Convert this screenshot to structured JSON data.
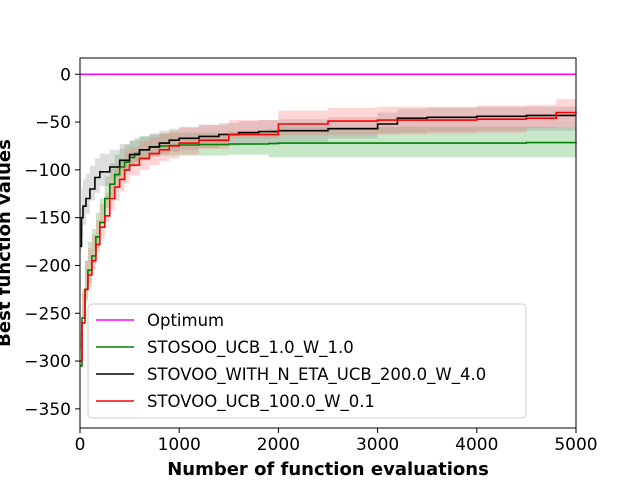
{
  "chart_data": {
    "type": "line",
    "title": "",
    "xlabel": "Number of function evaluations",
    "ylabel": "Best function values",
    "xlim": [
      0,
      5000
    ],
    "ylim": [
      -370,
      17
    ],
    "xticks": [
      0,
      1000,
      2000,
      3000,
      4000,
      5000
    ],
    "yticks": [
      0,
      -50,
      -100,
      -150,
      -200,
      -250,
      -300,
      -350
    ],
    "grid": false,
    "legend_position": "lower-left",
    "series": [
      {
        "name": "Optimum",
        "color": "#ff00ff",
        "x": [
          0,
          5000
        ],
        "y": [
          0,
          0
        ]
      },
      {
        "name": "STOSOO_UCB_1.0_W_1.0",
        "color": "#008000",
        "band_color": "#3aa83a",
        "x": [
          0,
          20,
          50,
          80,
          120,
          160,
          200,
          250,
          300,
          350,
          400,
          450,
          500,
          550,
          600,
          700,
          800,
          900,
          1000,
          1200,
          1500,
          1900,
          2000,
          2500,
          3000,
          3500,
          4000,
          4500,
          5000
        ],
        "y": [
          -305,
          -255,
          -225,
          -205,
          -190,
          -170,
          -155,
          -130,
          -115,
          -105,
          -97,
          -92,
          -87,
          -83,
          -79,
          -76,
          -75,
          -74.5,
          -74,
          -73.5,
          -73,
          -72.5,
          -72,
          -72,
          -72,
          -72,
          -72,
          -71.5,
          -71
        ],
        "lower": [
          -330,
          -285,
          -255,
          -235,
          -218,
          -198,
          -182,
          -157,
          -140,
          -128,
          -118,
          -110,
          -102,
          -97,
          -92,
          -88,
          -86,
          -85,
          -85,
          -85,
          -85,
          -84,
          -87,
          -87,
          -87,
          -87,
          -87,
          -87,
          -87
        ],
        "upper": [
          -280,
          -225,
          -195,
          -175,
          -162,
          -145,
          -130,
          -107,
          -93,
          -84,
          -78,
          -74,
          -70,
          -67,
          -65,
          -63,
          -62,
          -61,
          -61,
          -61,
          -60,
          -58,
          -55,
          -55,
          -55,
          -55,
          -55,
          -55,
          -55
        ]
      },
      {
        "name": "STOVOO_WITH_N_ETA_UCB_200.0_W_4.0",
        "color": "#000000",
        "band_color": "#8a8a8a",
        "x": [
          0,
          15,
          30,
          60,
          100,
          150,
          200,
          300,
          400,
          500,
          600,
          700,
          800,
          900,
          1000,
          1200,
          1400,
          1600,
          1800,
          2000,
          2500,
          3000,
          3200,
          3500,
          4000,
          4500,
          5000
        ],
        "y": [
          -180,
          -150,
          -138,
          -130,
          -120,
          -108,
          -102,
          -97,
          -90,
          -84,
          -79,
          -76,
          -72,
          -69,
          -67,
          -65,
          -63,
          -61,
          -60,
          -59,
          -57,
          -52,
          -46,
          -45,
          -44,
          -43,
          -43
        ],
        "lower": [
          -220,
          -185,
          -168,
          -158,
          -146,
          -132,
          -124,
          -117,
          -108,
          -100,
          -94,
          -90,
          -86,
          -83,
          -81,
          -79,
          -77,
          -75,
          -74,
          -73,
          -71,
          -67,
          -62,
          -61,
          -60,
          -59,
          -59
        ],
        "upper": [
          -140,
          -118,
          -110,
          -104,
          -96,
          -88,
          -83,
          -79,
          -73,
          -69,
          -65,
          -62,
          -59,
          -57,
          -55,
          -53,
          -51,
          -49,
          -48,
          -47,
          -45,
          -40,
          -36,
          -35,
          -34,
          -34,
          -34
        ]
      },
      {
        "name": "STOVOO_UCB_100.0_W_0.1",
        "color": "#ff0000",
        "band_color": "#ff6b6b",
        "x": [
          0,
          20,
          50,
          80,
          120,
          160,
          200,
          250,
          300,
          350,
          400,
          450,
          500,
          600,
          700,
          800,
          900,
          1000,
          1200,
          1500,
          2000,
          2500,
          3000,
          3500,
          4000,
          4500,
          4800,
          5000
        ],
        "y": [
          -300,
          -260,
          -225,
          -210,
          -195,
          -178,
          -160,
          -148,
          -130,
          -118,
          -110,
          -100,
          -95,
          -88,
          -83,
          -79,
          -75,
          -72,
          -69,
          -63,
          -52,
          -49,
          -48,
          -48,
          -47,
          -46,
          -40,
          -39
        ],
        "lower": [
          -330,
          -290,
          -255,
          -238,
          -222,
          -205,
          -186,
          -172,
          -155,
          -142,
          -132,
          -122,
          -114,
          -106,
          -100,
          -95,
          -91,
          -88,
          -84,
          -78,
          -67,
          -64,
          -63,
          -63,
          -62,
          -61,
          -56,
          -55
        ],
        "upper": [
          -270,
          -230,
          -195,
          -182,
          -168,
          -152,
          -136,
          -124,
          -107,
          -96,
          -88,
          -80,
          -76,
          -70,
          -66,
          -62,
          -59,
          -56,
          -53,
          -48,
          -38,
          -35,
          -34,
          -34,
          -33,
          -32,
          -26,
          -25
        ]
      }
    ]
  }
}
